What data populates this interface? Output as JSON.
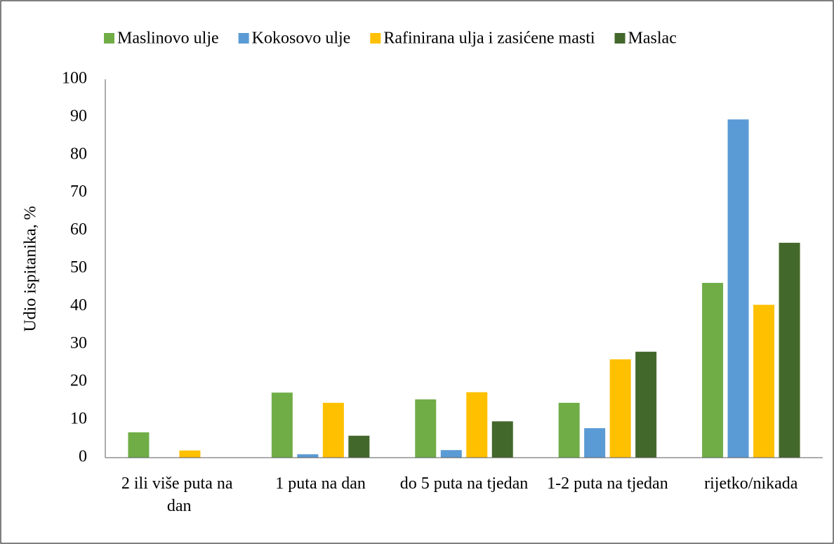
{
  "chart_data": {
    "type": "bar",
    "categories": [
      "2 ili više puta na dan",
      "1 puta na dan",
      "do 5 puta na tjedan",
      "1-2 puta na tjedan",
      "rijetko/nikada"
    ],
    "series": [
      {
        "name": "Maslinovo ulje",
        "color": "#70ad47",
        "values": [
          6.7,
          17.2,
          15.4,
          14.5,
          46.2
        ]
      },
      {
        "name": "Kokosovo ulje",
        "color": "#5b9bd5",
        "values": [
          0,
          0.9,
          2,
          7.8,
          89.4
        ]
      },
      {
        "name": "Rafinirana ulja i zasićene masti",
        "color": "#ffc000",
        "values": [
          1.9,
          14.5,
          17.3,
          26,
          40.4
        ]
      },
      {
        "name": "Maslac",
        "color": "#43682b",
        "values": [
          0,
          5.8,
          9.6,
          28,
          56.8
        ]
      }
    ],
    "ylabel": "Udio ispitanika, %",
    "ylim": [
      0,
      100
    ],
    "yticks": [
      0,
      10,
      20,
      30,
      40,
      50,
      60,
      70,
      80,
      90,
      100
    ],
    "grid": false,
    "legend": "top"
  }
}
